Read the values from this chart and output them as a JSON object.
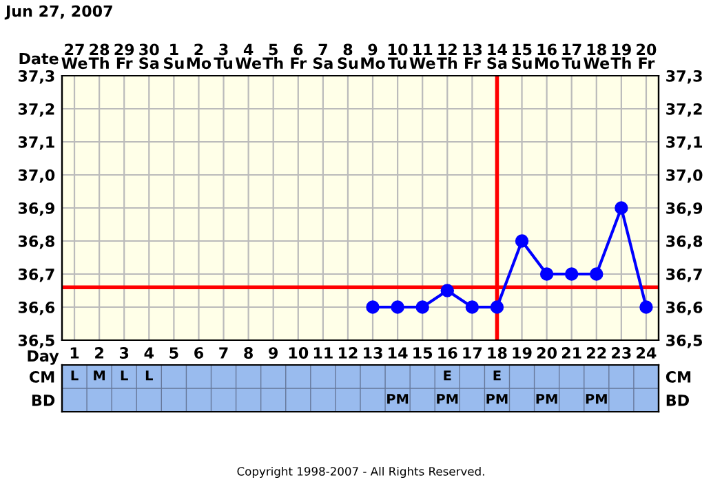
{
  "chart_data": [
    {
      "type": "line",
      "title": "Jun 27, 2007",
      "xlabel": "Day",
      "x2label": "Date",
      "categories": [
        "1",
        "2",
        "3",
        "4",
        "5",
        "6",
        "7",
        "8",
        "9",
        "10",
        "11",
        "12",
        "13",
        "14",
        "15",
        "16",
        "17",
        "18",
        "19",
        "20",
        "21",
        "22",
        "23",
        "24"
      ],
      "series": [
        {
          "color": "#0000ff",
          "values": [
            null,
            null,
            null,
            null,
            null,
            null,
            null,
            null,
            null,
            null,
            null,
            null,
            36.6,
            36.6,
            36.6,
            36.65,
            36.6,
            36.6,
            36.8,
            36.7,
            36.7,
            36.7,
            36.9,
            36.6
          ]
        }
      ],
      "ylim": [
        36.5,
        37.3
      ],
      "yticks": [
        {
          "value": 36.5,
          "label": "36,5"
        },
        {
          "value": 36.6,
          "label": "36,6"
        },
        {
          "value": 36.7,
          "label": "36,7"
        },
        {
          "value": 36.8,
          "label": "36,8"
        },
        {
          "value": 36.9,
          "label": "36,9"
        },
        {
          "value": 37.0,
          "label": "37,0"
        },
        {
          "value": 37.1,
          "label": "37,1"
        },
        {
          "value": 37.2,
          "label": "37,2"
        },
        {
          "value": 37.3,
          "label": "37,3"
        }
      ],
      "y2lim": [
        36.5,
        37.3
      ],
      "y2ticks": [
        {
          "value": 36.5,
          "label": "36,5"
        },
        {
          "value": 36.6,
          "label": "36,6"
        },
        {
          "value": 36.7,
          "label": "36,7"
        },
        {
          "value": 36.8,
          "label": "36,8"
        },
        {
          "value": 36.9,
          "label": "36,9"
        },
        {
          "value": 37.0,
          "label": "37,0"
        },
        {
          "value": 37.1,
          "label": "37,1"
        },
        {
          "value": 37.2,
          "label": "37,2"
        },
        {
          "value": 37.3,
          "label": "37,3"
        }
      ],
      "ref_lines": [
        {
          "axis": "y",
          "value": 36.66,
          "color": "#ff0000"
        },
        {
          "axis": "x",
          "value": "18",
          "color": "#ff0000"
        }
      ],
      "grid": true,
      "marker": "circle",
      "line_style": "solid",
      "annotations": [
        "27\nWe",
        "28\nTh",
        "29\nFr",
        "30\nSa",
        "1\nSu",
        "2\nMo",
        "3\nTu",
        "4\nWe",
        "5\nTh",
        "6\nFr",
        "7\nSa",
        "8\nSu",
        "9\nMo",
        "10\nTu",
        "11\nWe",
        "12\nTh",
        "13\nFr",
        "14\nSa",
        "15\nSu",
        "16\nMo",
        "17\nTu",
        "18\nWe",
        "19\nTh",
        "20\nFr",
        "Copyright 1998-2007 - All Rights Reserved."
      ]
    },
    {
      "type": "heatmap",
      "categories": [
        null,
        null,
        null,
        null,
        null,
        null,
        null,
        null,
        null,
        null,
        null,
        null,
        null,
        null,
        null,
        null,
        null,
        null,
        null,
        null,
        null,
        null,
        null,
        null
      ],
      "y_categories": [
        "CM",
        "BD"
      ],
      "y2_categories": [
        "CM",
        "BD"
      ],
      "cells": [
        [
          null,
          null,
          null,
          null,
          null,
          null,
          null,
          null,
          null,
          null,
          null,
          null,
          null,
          null,
          null,
          null,
          null,
          null,
          null,
          null,
          null,
          null,
          null,
          null
        ],
        [
          null,
          null,
          null,
          null,
          null,
          null,
          null,
          null,
          null,
          null,
          null,
          null,
          null,
          null,
          null,
          null,
          null,
          null,
          null,
          null,
          null,
          null,
          null,
          null
        ]
      ],
      "cell_labels": [
        [
          "L",
          "M",
          "L",
          "L",
          null,
          null,
          null,
          null,
          null,
          null,
          null,
          null,
          null,
          null,
          null,
          "E",
          null,
          "E",
          null,
          null,
          null,
          null,
          null,
          null
        ],
        [
          null,
          null,
          null,
          null,
          null,
          null,
          null,
          null,
          null,
          null,
          null,
          null,
          null,
          "PM",
          null,
          "PM",
          null,
          "PM",
          null,
          "PM",
          null,
          "PM",
          null,
          null
        ]
      ]
    }
  ]
}
